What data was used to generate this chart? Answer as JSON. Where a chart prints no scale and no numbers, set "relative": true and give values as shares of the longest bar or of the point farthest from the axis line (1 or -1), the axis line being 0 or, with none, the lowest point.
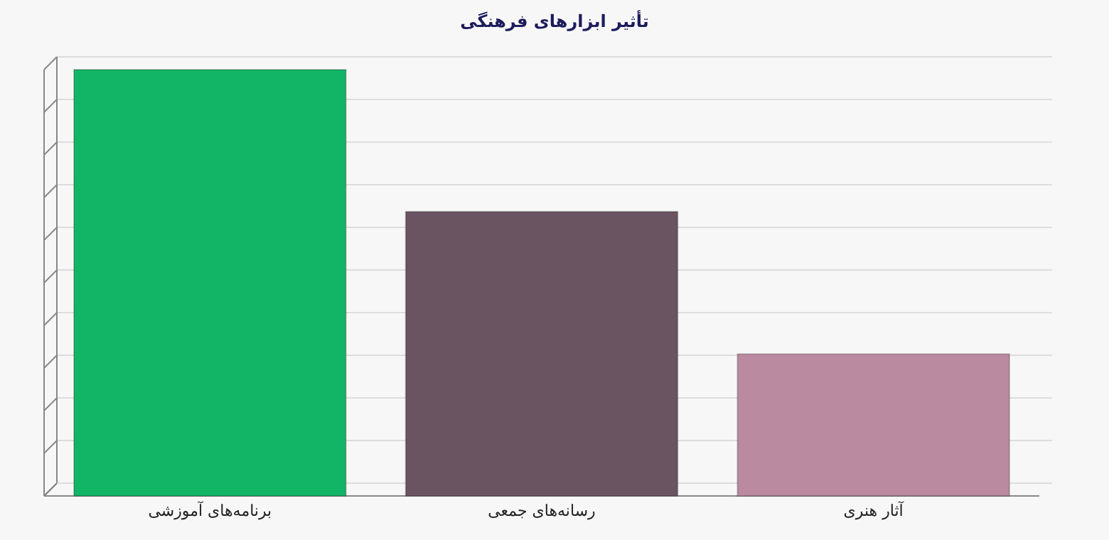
{
  "chart_data": {
    "type": "bar",
    "title": "تأثیر ابزارهای فرهنگی",
    "relative": true,
    "grid": "y",
    "categories": [
      "برنامه‌های آموزشی",
      "رسانه‌های جمعی",
      "آثار هنری"
    ],
    "values": [
      1,
      0.667,
      0.333
    ],
    "colors": [
      "#12b566",
      "#6b5462",
      "#b98aa0"
    ]
  }
}
